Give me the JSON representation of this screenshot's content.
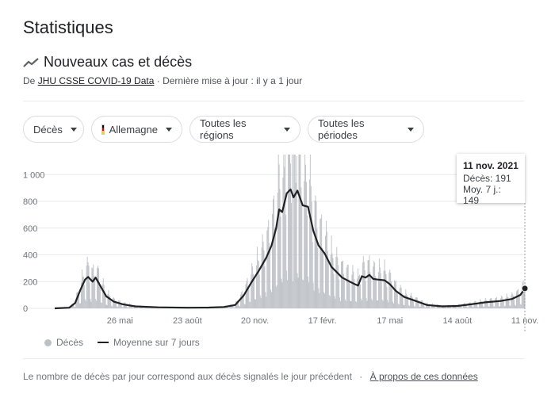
{
  "page": {
    "title": "Statistiques",
    "section_title": "Nouveaux cas et décès",
    "source_prefix": "De ",
    "source_link": "JHU CSSE COVID-19 Data",
    "source_suffix": " · Dernière mise à jour : il y a 1 jour"
  },
  "filters": [
    {
      "label": "Décès"
    },
    {
      "label": "Allemagne"
    },
    {
      "label": "Toutes les régions"
    },
    {
      "label": "Toutes les périodes"
    }
  ],
  "tooltip": {
    "date": "11 nov. 2021",
    "deaths_line": "Décès: 191",
    "avg_line": "Moy. 7 j.: 149"
  },
  "legend": {
    "bars": "Décès",
    "line": "Moyenne sur 7 jours"
  },
  "footer": {
    "text": "Le nombre de décès par jour correspond aux décès signalés le jour précédent",
    "separator": "·",
    "link": "À propos de ces données"
  },
  "colors": {
    "bars": "#bdc1c6",
    "line": "#202124",
    "grid": "#e8eaed",
    "flag_black": "#000000",
    "flag_red": "#dd0000",
    "flag_gold": "#ffce00"
  },
  "chart_data": {
    "type": "bar",
    "xlabel": "",
    "ylabel": "",
    "ylim": [
      0,
      1150
    ],
    "y_ticks": [
      0,
      200,
      400,
      600,
      800,
      1000
    ],
    "y_tick_labels": [
      "0",
      "200",
      "400",
      "600",
      "800",
      "1 000"
    ],
    "x_range": [
      "2020-03-01",
      "2021-11-11"
    ],
    "x_ticks": [
      {
        "date": "2020-05-26",
        "label": "26 mai"
      },
      {
        "date": "2020-08-23",
        "label": "23 août"
      },
      {
        "date": "2020-11-20",
        "label": "20 nov."
      },
      {
        "date": "2021-02-17",
        "label": "17 févr."
      },
      {
        "date": "2021-05-17",
        "label": "17 mai"
      },
      {
        "date": "2021-08-14",
        "label": "14 août"
      },
      {
        "date": "2021-11-11",
        "label": "11 nov."
      }
    ],
    "series": [
      {
        "name": "Moyenne sur 7 jours",
        "points": [
          [
            "2020-03-01",
            0
          ],
          [
            "2020-03-20",
            5
          ],
          [
            "2020-03-28",
            40
          ],
          [
            "2020-04-04",
            140
          ],
          [
            "2020-04-10",
            215
          ],
          [
            "2020-04-14",
            235
          ],
          [
            "2020-04-20",
            200
          ],
          [
            "2020-04-24",
            230
          ],
          [
            "2020-05-01",
            160
          ],
          [
            "2020-05-08",
            90
          ],
          [
            "2020-05-18",
            50
          ],
          [
            "2020-05-30",
            30
          ],
          [
            "2020-06-15",
            15
          ],
          [
            "2020-07-15",
            8
          ],
          [
            "2020-08-23",
            5
          ],
          [
            "2020-09-20",
            6
          ],
          [
            "2020-10-10",
            10
          ],
          [
            "2020-10-25",
            25
          ],
          [
            "2020-11-05",
            95
          ],
          [
            "2020-11-15",
            190
          ],
          [
            "2020-11-25",
            280
          ],
          [
            "2020-12-05",
            380
          ],
          [
            "2020-12-12",
            470
          ],
          [
            "2020-12-18",
            600
          ],
          [
            "2020-12-22",
            740
          ],
          [
            "2020-12-26",
            720
          ],
          [
            "2021-01-01",
            860
          ],
          [
            "2021-01-06",
            890
          ],
          [
            "2021-01-10",
            830
          ],
          [
            "2021-01-15",
            880
          ],
          [
            "2021-01-22",
            770
          ],
          [
            "2021-01-29",
            760
          ],
          [
            "2021-02-05",
            580
          ],
          [
            "2021-02-12",
            470
          ],
          [
            "2021-02-20",
            410
          ],
          [
            "2021-03-01",
            310
          ],
          [
            "2021-03-15",
            230
          ],
          [
            "2021-03-25",
            200
          ],
          [
            "2021-04-01",
            180
          ],
          [
            "2021-04-05",
            170
          ],
          [
            "2021-04-10",
            240
          ],
          [
            "2021-04-15",
            230
          ],
          [
            "2021-04-20",
            250
          ],
          [
            "2021-04-25",
            220
          ],
          [
            "2021-05-01",
            215
          ],
          [
            "2021-05-10",
            210
          ],
          [
            "2021-05-17",
            180
          ],
          [
            "2021-05-25",
            130
          ],
          [
            "2021-06-05",
            85
          ],
          [
            "2021-06-20",
            55
          ],
          [
            "2021-07-05",
            25
          ],
          [
            "2021-07-25",
            15
          ],
          [
            "2021-08-14",
            18
          ],
          [
            "2021-09-01",
            30
          ],
          [
            "2021-09-20",
            45
          ],
          [
            "2021-10-10",
            55
          ],
          [
            "2021-10-25",
            70
          ],
          [
            "2021-11-05",
            100
          ],
          [
            "2021-11-11",
            149
          ]
        ]
      }
    ],
    "bar_series": {
      "name": "Décès",
      "peak_points": [
        [
          "2020-04-15",
          320
        ],
        [
          "2020-12-30",
          1150
        ],
        [
          "2021-01-08",
          1150
        ],
        [
          "2021-01-14",
          1140
        ],
        [
          "2021-11-11",
          191
        ]
      ]
    },
    "highlight_point": {
      "date": "2021-11-11",
      "value": 149
    }
  }
}
